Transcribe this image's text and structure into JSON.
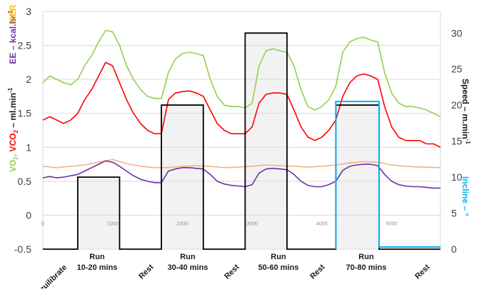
{
  "chart_data": {
    "type": "line",
    "x": {
      "ticks": [
        0,
        1000,
        2000,
        3000,
        4000,
        5000
      ],
      "range": [
        0,
        5700
      ]
    },
    "y_left": {
      "ticks": [
        "-0.5",
        "0",
        "0.5",
        "1",
        "1.5",
        "2",
        "2.5",
        "3"
      ],
      "range": [
        -0.5,
        3
      ]
    },
    "y_right": {
      "ticks": [
        "0",
        "5",
        "10",
        "15",
        "20",
        "25",
        "30"
      ],
      "range": [
        0,
        33
      ]
    },
    "left_axis_label": {
      "vo2": "VO",
      "vo2_sub": "2",
      "sep1": ", ",
      "vco2": "VCO",
      "vco2_sub": "2",
      "vunit": " – ml.min",
      "vunit_sup": "-1",
      "ee": "EE – kcal.hr",
      "ee_sup": "-1",
      "rer": "RER"
    },
    "right_axis_label": {
      "speed": "Speed – m.min",
      "speed_sup": "-1",
      "incline": "Incline – °"
    },
    "phases": [
      {
        "line1": "Equilibrate",
        "line2": "",
        "rotated": true
      },
      {
        "line1": "Run",
        "line2": "10-20 mins",
        "rotated": false
      },
      {
        "line1": "Rest",
        "line2": "",
        "rotated": true
      },
      {
        "line1": "Run",
        "line2": "30-40 mins",
        "rotated": false
      },
      {
        "line1": "Rest",
        "line2": "",
        "rotated": true
      },
      {
        "line1": "Run",
        "line2": "50-60 mins",
        "rotated": false
      },
      {
        "line1": "Rest",
        "line2": "",
        "rotated": true
      },
      {
        "line1": "Run",
        "line2": "70-80 mins",
        "rotated": false
      },
      {
        "line1": "Rest",
        "line2": "",
        "rotated": true
      }
    ],
    "run_bands": [
      [
        500,
        1100
      ],
      [
        1700,
        2300
      ],
      [
        2900,
        3500
      ],
      [
        4200,
        4820
      ]
    ],
    "speed": {
      "x": [
        0,
        500,
        500,
        1100,
        1100,
        1700,
        1700,
        2300,
        2300,
        2900,
        2900,
        3500,
        3500,
        4200,
        4200,
        4820,
        4820,
        5700
      ],
      "y": [
        0,
        0,
        10,
        10,
        0,
        0,
        20,
        20,
        0,
        0,
        30,
        30,
        0,
        0,
        20,
        20,
        0,
        0
      ]
    },
    "incline": {
      "x": [
        4200,
        4200,
        4820,
        4820,
        5700
      ],
      "y": [
        0,
        20.5,
        20.5,
        0.3,
        0.3
      ]
    },
    "series": [
      {
        "name": "VO2",
        "color": "#92d050",
        "x": [
          0,
          100,
          200,
          300,
          400,
          500,
          600,
          700,
          800,
          900,
          1000,
          1100,
          1200,
          1300,
          1400,
          1500,
          1600,
          1700,
          1800,
          1900,
          2000,
          2100,
          2200,
          2300,
          2400,
          2500,
          2600,
          2700,
          2800,
          2900,
          3000,
          3100,
          3200,
          3300,
          3400,
          3500,
          3600,
          3700,
          3800,
          3900,
          4000,
          4100,
          4200,
          4300,
          4400,
          4500,
          4600,
          4700,
          4800,
          4900,
          5000,
          5100,
          5200,
          5300,
          5400,
          5500,
          5600,
          5700
        ],
        "y": [
          1.95,
          2.05,
          2.0,
          1.95,
          1.92,
          2.0,
          2.2,
          2.35,
          2.55,
          2.72,
          2.7,
          2.5,
          2.2,
          2.0,
          1.85,
          1.75,
          1.72,
          1.72,
          2.1,
          2.3,
          2.38,
          2.4,
          2.38,
          2.35,
          2.0,
          1.75,
          1.62,
          1.6,
          1.6,
          1.58,
          1.65,
          2.2,
          2.42,
          2.45,
          2.42,
          2.4,
          2.2,
          1.85,
          1.6,
          1.55,
          1.6,
          1.7,
          1.9,
          2.4,
          2.55,
          2.6,
          2.62,
          2.58,
          2.55,
          2.1,
          1.8,
          1.65,
          1.6,
          1.6,
          1.58,
          1.55,
          1.5,
          1.45
        ]
      },
      {
        "name": "VCO2",
        "color": "#ff0000",
        "x": [
          0,
          100,
          200,
          300,
          400,
          500,
          600,
          700,
          800,
          900,
          1000,
          1100,
          1200,
          1300,
          1400,
          1500,
          1600,
          1700,
          1800,
          1900,
          2000,
          2100,
          2200,
          2300,
          2400,
          2500,
          2600,
          2700,
          2800,
          2900,
          3000,
          3100,
          3200,
          3300,
          3400,
          3500,
          3600,
          3700,
          3800,
          3900,
          4000,
          4100,
          4200,
          4300,
          4400,
          4500,
          4600,
          4700,
          4800,
          4900,
          5000,
          5100,
          5200,
          5300,
          5400,
          5500,
          5600,
          5700
        ],
        "y": [
          1.4,
          1.45,
          1.4,
          1.35,
          1.4,
          1.5,
          1.7,
          1.85,
          2.05,
          2.25,
          2.2,
          1.95,
          1.7,
          1.5,
          1.35,
          1.25,
          1.2,
          1.2,
          1.7,
          1.8,
          1.82,
          1.83,
          1.8,
          1.75,
          1.55,
          1.35,
          1.25,
          1.2,
          1.2,
          1.2,
          1.3,
          1.65,
          1.78,
          1.8,
          1.8,
          1.78,
          1.55,
          1.3,
          1.15,
          1.1,
          1.15,
          1.25,
          1.4,
          1.75,
          1.95,
          2.05,
          2.08,
          2.05,
          2.0,
          1.6,
          1.3,
          1.15,
          1.1,
          1.1,
          1.1,
          1.05,
          1.05,
          1.0
        ]
      },
      {
        "name": "RER",
        "color": "#f4b183",
        "x": [
          0,
          200,
          400,
          600,
          800,
          1000,
          1200,
          1400,
          1600,
          1800,
          2000,
          2200,
          2400,
          2600,
          2800,
          3000,
          3200,
          3400,
          3600,
          3800,
          4000,
          4200,
          4400,
          4600,
          4800,
          5000,
          5200,
          5400,
          5700
        ],
        "y": [
          0.72,
          0.7,
          0.72,
          0.74,
          0.78,
          0.82,
          0.76,
          0.72,
          0.7,
          0.7,
          0.72,
          0.73,
          0.72,
          0.7,
          0.71,
          0.72,
          0.74,
          0.73,
          0.72,
          0.71,
          0.72,
          0.74,
          0.77,
          0.79,
          0.78,
          0.74,
          0.72,
          0.71,
          0.7
        ]
      },
      {
        "name": "EE",
        "color": "#7030a0",
        "x": [
          0,
          100,
          200,
          300,
          400,
          500,
          600,
          700,
          800,
          900,
          1000,
          1100,
          1200,
          1300,
          1400,
          1500,
          1600,
          1700,
          1800,
          1900,
          2000,
          2100,
          2200,
          2300,
          2400,
          2500,
          2600,
          2700,
          2800,
          2900,
          3000,
          3100,
          3200,
          3300,
          3400,
          3500,
          3600,
          3700,
          3800,
          3900,
          4000,
          4100,
          4200,
          4300,
          4400,
          4500,
          4600,
          4700,
          4800,
          4900,
          5000,
          5100,
          5200,
          5300,
          5400,
          5500,
          5600,
          5700
        ],
        "y": [
          0.55,
          0.57,
          0.55,
          0.56,
          0.58,
          0.6,
          0.65,
          0.7,
          0.75,
          0.8,
          0.78,
          0.72,
          0.65,
          0.58,
          0.53,
          0.5,
          0.48,
          0.48,
          0.65,
          0.68,
          0.7,
          0.7,
          0.69,
          0.68,
          0.6,
          0.5,
          0.46,
          0.44,
          0.43,
          0.42,
          0.45,
          0.62,
          0.68,
          0.69,
          0.68,
          0.67,
          0.6,
          0.5,
          0.44,
          0.42,
          0.42,
          0.45,
          0.5,
          0.66,
          0.72,
          0.74,
          0.75,
          0.75,
          0.73,
          0.6,
          0.5,
          0.45,
          0.43,
          0.42,
          0.42,
          0.41,
          0.4,
          0.4
        ]
      }
    ]
  }
}
